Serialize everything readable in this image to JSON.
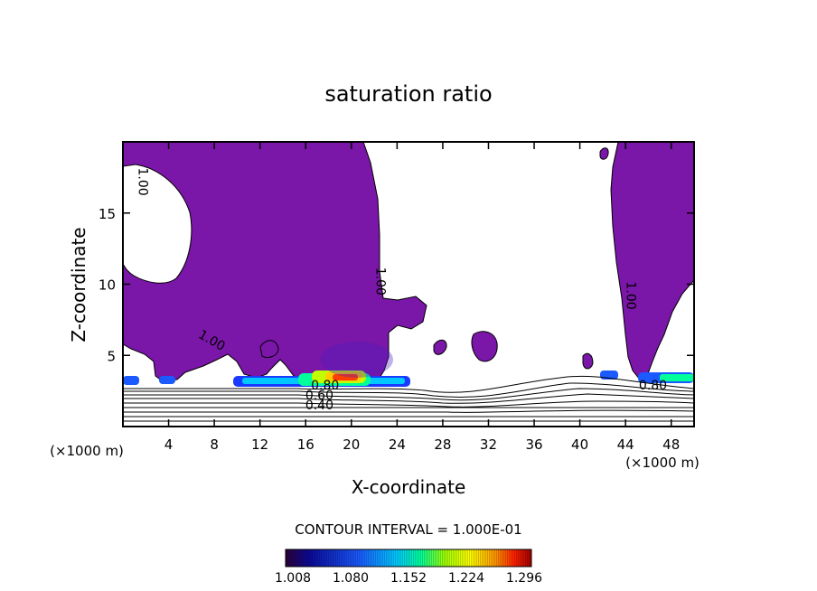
{
  "chart_data": {
    "type": "contour",
    "title": "saturation ratio",
    "xlabel": "X-coordinate",
    "ylabel": "Z-coordinate",
    "x_unit_left": "(×1000 m)",
    "x_unit_right": "(×1000 m)",
    "xlim": [
      0,
      50
    ],
    "ylim": [
      0,
      20
    ],
    "x_ticks": [
      4,
      8,
      12,
      16,
      20,
      24,
      28,
      32,
      36,
      40,
      44,
      48
    ],
    "y_ticks": [
      5,
      10,
      15
    ],
    "contour_interval_text": "CONTOUR INTERVAL = 1.000E-01",
    "contour_labels": [
      {
        "text": "1.00",
        "x": 1.4,
        "z": 17.2
      },
      {
        "text": "1.00",
        "x": 22.2,
        "z": 10.2
      },
      {
        "text": "1.00",
        "x": 7.6,
        "z": 5.8
      },
      {
        "text": "1.00",
        "x": 44.1,
        "z": 9.2
      },
      {
        "text": "0.80",
        "x": 17.7,
        "z": 2.6
      },
      {
        "text": "0.60",
        "x": 17.2,
        "z": 1.9
      },
      {
        "text": "0.40",
        "x": 17.2,
        "z": 1.2
      },
      {
        "text": "0.80",
        "x": 46.4,
        "z": 2.6
      }
    ],
    "colorbar": {
      "ticks": [
        "1.008",
        "1.080",
        "1.152",
        "1.224",
        "1.296"
      ],
      "colors": [
        "#2a003a",
        "#0a0a9a",
        "#1a5aff",
        "#00c8ff",
        "#00ff9a",
        "#a0ff00",
        "#ffff00",
        "#ff9900",
        "#ff2000",
        "#a00000"
      ]
    },
    "colors": {
      "supersat": "#7a16a8",
      "axis": "#000000"
    }
  }
}
